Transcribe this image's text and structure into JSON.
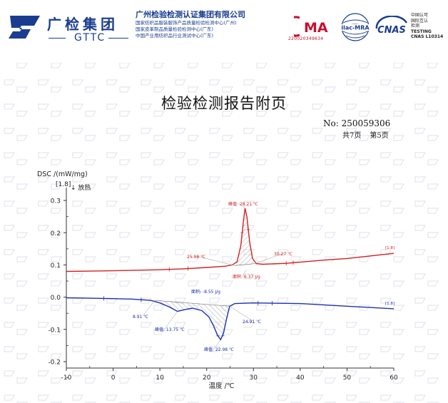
{
  "header": {
    "brand_cn": "广检集团",
    "brand_en": "GTTC",
    "company_name": "广州检验检测认证集团有限公司",
    "sub_lines": [
      "国家纺织品服装服饰产品质量检验检测中心(广州)",
      "国家皮革制品质量检验检测中心(广东)",
      "中国产业用纺织品行业测试中心(广东)"
    ],
    "cma_label": "MA",
    "cma_number": "220020349634",
    "ilac_label": "ilac-MRA",
    "cnas_label": "CNAS",
    "cnas_lines": [
      "中国认可",
      "国际互认",
      "检测",
      "TESTING",
      "CNAS L10314"
    ]
  },
  "title": "检验检测报告附页",
  "report_no": "No: 250059306",
  "page_total": "共7页",
  "page_current": "第5页",
  "chart_data": {
    "type": "line",
    "ylabel": "DSC /(mW/mg)",
    "ylabel_sub": "[1.8]",
    "exo_label": "↓ 放热",
    "xlabel": "温度 /℃",
    "xlim": [
      -10,
      60
    ],
    "ylim": [
      -0.22,
      0.34
    ],
    "x_ticks": [
      -10,
      0,
      10,
      20,
      30,
      40,
      50,
      60
    ],
    "y_ticks": [
      0.3,
      0.2,
      0.1,
      0.0,
      -0.1,
      -0.2
    ],
    "y_tick_labels": [
      "0.3",
      "0.2",
      "0.1",
      "0.0",
      "-0.1",
      "-0.2"
    ],
    "series": [
      {
        "color": "#d42020",
        "end_label": "[1.8]",
        "points": [
          [
            -10,
            0.08
          ],
          [
            0,
            0.082
          ],
          [
            10,
            0.085
          ],
          [
            15,
            0.088
          ],
          [
            20,
            0.092
          ],
          [
            24,
            0.096
          ],
          [
            25.5,
            0.1
          ],
          [
            26.5,
            0.11
          ],
          [
            27.3,
            0.16
          ],
          [
            27.8,
            0.23
          ],
          [
            28.21,
            0.276
          ],
          [
            28.6,
            0.25
          ],
          [
            29.2,
            0.17
          ],
          [
            29.8,
            0.12
          ],
          [
            30.6,
            0.104
          ],
          [
            32,
            0.102
          ],
          [
            37,
            0.105
          ],
          [
            45,
            0.115
          ],
          [
            50,
            0.12
          ],
          [
            55,
            0.128
          ],
          [
            60,
            0.136
          ]
        ],
        "annotations": [
          {
            "x": 28.21,
            "y": 0.276,
            "text": "峰值: 28.21 ℃"
          },
          {
            "x": 25.98,
            "y": 0.098,
            "text": "25.98 ℃"
          },
          {
            "x": 30.27,
            "y": 0.104,
            "text": "30.27 ℃"
          },
          {
            "x": 28.5,
            "y": 0.085,
            "text": "面积: 6.37 J/g"
          }
        ]
      },
      {
        "color": "#1f2fb0",
        "end_label": "[1.8]",
        "points": [
          [
            -10,
            -0.002
          ],
          [
            -2,
            -0.004
          ],
          [
            4,
            -0.006
          ],
          [
            8,
            -0.01
          ],
          [
            10,
            -0.018
          ],
          [
            12,
            -0.03
          ],
          [
            13.75,
            -0.044
          ],
          [
            15.5,
            -0.038
          ],
          [
            17,
            -0.034
          ],
          [
            19,
            -0.042
          ],
          [
            20.5,
            -0.062
          ],
          [
            21.5,
            -0.09
          ],
          [
            22.3,
            -0.118
          ],
          [
            22.98,
            -0.132
          ],
          [
            23.6,
            -0.112
          ],
          [
            24.2,
            -0.07
          ],
          [
            24.91,
            -0.028
          ],
          [
            26,
            -0.02
          ],
          [
            30,
            -0.018
          ],
          [
            40,
            -0.02
          ],
          [
            50,
            -0.028
          ],
          [
            60,
            -0.036
          ]
        ],
        "annotations": [
          {
            "x": 18.5,
            "y": 0.012,
            "text": "面积: -8.55 J/g"
          },
          {
            "x": 8.91,
            "y": -0.01,
            "text": "8.91 ℃"
          },
          {
            "x": 13.75,
            "y": -0.044,
            "text": "峰值: 13.75 ℃"
          },
          {
            "x": 24.91,
            "y": -0.028,
            "text": "24.91 ℃"
          },
          {
            "x": 22.98,
            "y": -0.132,
            "text": "峰值: 22.98 ℃"
          }
        ]
      }
    ]
  }
}
